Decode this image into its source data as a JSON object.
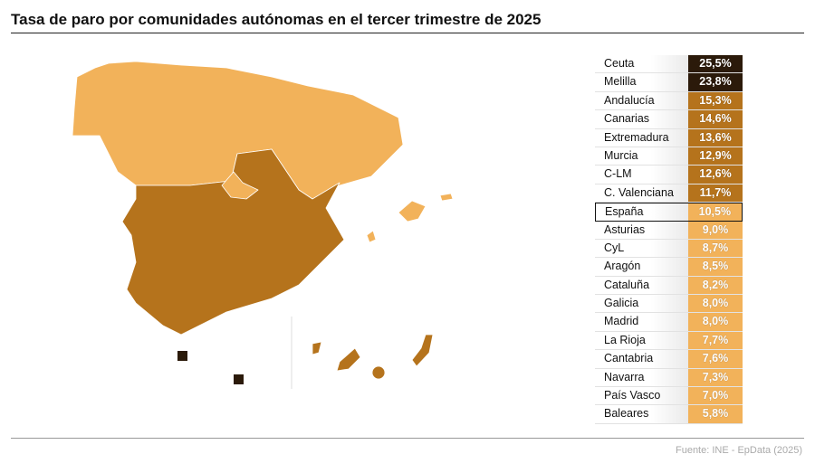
{
  "title": "Tasa de paro por comunidades autónomas en el tercer trimestre de 2025",
  "source": "Fuente: INE - EpData (2025)",
  "colors": {
    "dark": "#2b1a0a",
    "medium": "#b5731c",
    "light": "#f2b25a"
  },
  "chart_data": {
    "type": "table",
    "unit": "%",
    "rows": [
      {
        "name": "Ceuta",
        "value": "25,5%",
        "level": "dark"
      },
      {
        "name": "Melilla",
        "value": "23,8%",
        "level": "dark"
      },
      {
        "name": "Andalucía",
        "value": "15,3%",
        "level": "medium"
      },
      {
        "name": "Canarias",
        "value": "14,6%",
        "level": "medium"
      },
      {
        "name": "Extremadura",
        "value": "13,6%",
        "level": "medium"
      },
      {
        "name": "Murcia",
        "value": "12,9%",
        "level": "medium"
      },
      {
        "name": "C-LM",
        "value": "12,6%",
        "level": "medium"
      },
      {
        "name": "C. Valenciana",
        "value": "11,7%",
        "level": "medium"
      },
      {
        "name": "España",
        "value": "10,5%",
        "level": "light",
        "highlight": true
      },
      {
        "name": "Asturias",
        "value": "9,0%",
        "level": "light"
      },
      {
        "name": "CyL",
        "value": "8,7%",
        "level": "light"
      },
      {
        "name": "Aragón",
        "value": "8,5%",
        "level": "light"
      },
      {
        "name": "Cataluña",
        "value": "8,2%",
        "level": "light"
      },
      {
        "name": "Galicia",
        "value": "8,0%",
        "level": "light"
      },
      {
        "name": "Madrid",
        "value": "8,0%",
        "level": "light"
      },
      {
        "name": "La Rioja",
        "value": "7,7%",
        "level": "light"
      },
      {
        "name": "Cantabria",
        "value": "7,6%",
        "level": "light"
      },
      {
        "name": "Navarra",
        "value": "7,3%",
        "level": "light"
      },
      {
        "name": "País Vasco",
        "value": "7,0%",
        "level": "light"
      },
      {
        "name": "Baleares",
        "value": "5,8%",
        "level": "light"
      }
    ]
  }
}
